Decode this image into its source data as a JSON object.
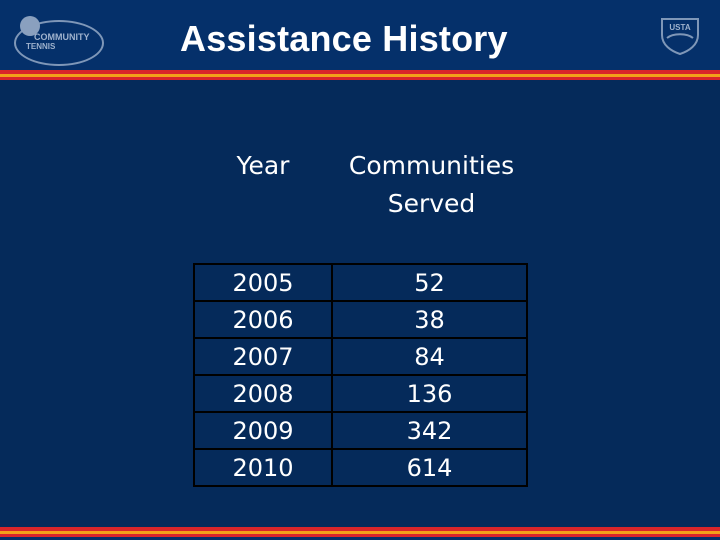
{
  "header": {
    "title": "Assistance History",
    "logo_left": {
      "line1": "COMMUNITY",
      "line2": "TENNIS",
      "icon": "community-tennis-logo"
    },
    "logo_right": {
      "text": "USTA",
      "icon": "usta-shield-logo"
    }
  },
  "colors": {
    "background": "#052a5a",
    "stripe_red": "#d9252a",
    "stripe_gold": "#f2a11a"
  },
  "table": {
    "headers": [
      "Year",
      "Communities Served"
    ],
    "rows": [
      {
        "year": "2005",
        "value": "52"
      },
      {
        "year": "2006",
        "value": "38"
      },
      {
        "year": "2007",
        "value": "84"
      },
      {
        "year": "2008",
        "value": "136"
      },
      {
        "year": "2009",
        "value": "342"
      },
      {
        "year": "2010",
        "value": "614"
      }
    ]
  }
}
